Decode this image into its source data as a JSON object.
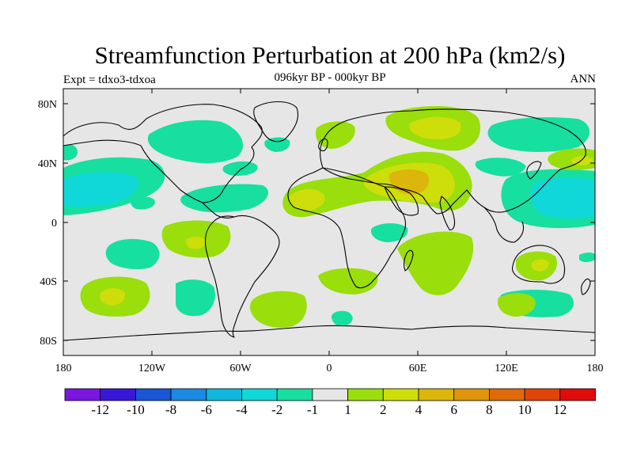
{
  "header": {
    "title": "Streamfunction Perturbation at 200 hPa (km2/s)",
    "subtitle": "096kyr BP - 000kyr BP",
    "left_label": "Expt = tdxo3-tdxoa",
    "right_label": "ANN"
  },
  "map": {
    "projection": "cylindrical equidistant",
    "lon_range": [
      -180,
      180
    ],
    "lat_range": [
      -90,
      90
    ],
    "background_color": "#e6e6e6",
    "lon_ticks": [
      "180",
      "120W",
      "60W",
      "0",
      "60E",
      "120E",
      "180"
    ],
    "lat_ticks": [
      "80N",
      "40N",
      "0",
      "40S",
      "80S"
    ]
  },
  "colorbar": {
    "colors": [
      "#7a16e0",
      "#3a17d8",
      "#1a55d6",
      "#1b8ae0",
      "#10b6dc",
      "#10d8d8",
      "#16dfa0",
      "#e6e6e6",
      "#9ade0c",
      "#cede0a",
      "#dcb60a",
      "#e0960a",
      "#e06a0a",
      "#e0440a",
      "#e00c0c"
    ],
    "labels": [
      "-12",
      "-10",
      "-8",
      "-6",
      "-4",
      "-2",
      "-1",
      "1",
      "2",
      "4",
      "6",
      "8",
      "10",
      "12"
    ]
  }
}
